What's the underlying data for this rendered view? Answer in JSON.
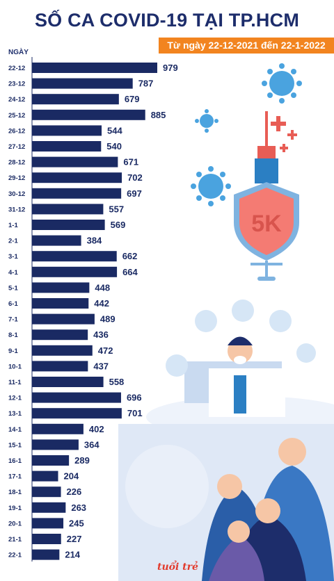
{
  "title": "SỐ CA COVID-19 TẠI TP.HCM",
  "subtitle": "Từ ngày 22-12-2021 đến 22-1-2022",
  "logo_text": "tuổi trẻ",
  "colors": {
    "bar": "#1a2a63",
    "title": "#1d2d6b",
    "accent": "#f2841f",
    "shield": "#f47b73"
  },
  "chart_data": {
    "type": "bar",
    "orientation": "horizontal",
    "ylabel": "NGÀY",
    "categories": [
      "22-12",
      "23-12",
      "24-12",
      "25-12",
      "26-12",
      "27-12",
      "28-12",
      "29-12",
      "30-12",
      "31-12",
      "1-1",
      "2-1",
      "3-1",
      "4-1",
      "5-1",
      "6-1",
      "7-1",
      "8-1",
      "9-1",
      "10-1",
      "11-1",
      "12-1",
      "13-1",
      "14-1",
      "15-1",
      "16-1",
      "17-1",
      "18-1",
      "19-1",
      "20-1",
      "21-1",
      "22-1"
    ],
    "values": [
      979,
      787,
      679,
      885,
      544,
      540,
      671,
      702,
      697,
      557,
      569,
      384,
      662,
      664,
      448,
      442,
      489,
      436,
      472,
      437,
      558,
      696,
      701,
      402,
      364,
      289,
      204,
      226,
      263,
      245,
      227,
      214
    ],
    "xlim": [
      0,
      979
    ],
    "data_labels": true,
    "grid": false
  }
}
